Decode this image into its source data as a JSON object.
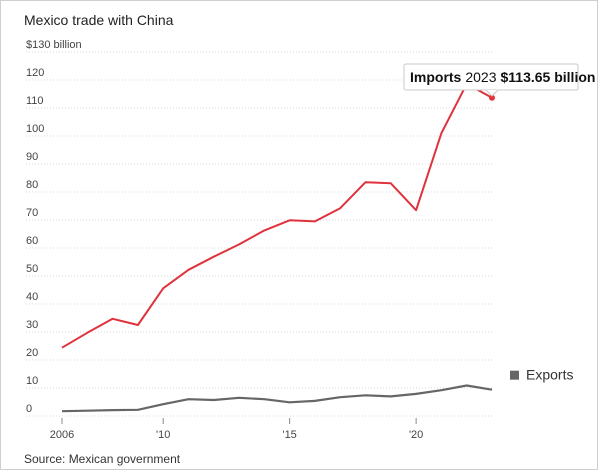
{
  "page": {
    "title": "Mexico trade with China",
    "source": "Source: Mexican government"
  },
  "chart_data": {
    "type": "line",
    "title": "Mexico trade with China",
    "xlabel": "",
    "ylabel": "$130 billion",
    "x": [
      2006,
      2007,
      2008,
      2009,
      2010,
      2011,
      2012,
      2013,
      2014,
      2015,
      2016,
      2017,
      2018,
      2019,
      2020,
      2021,
      2022,
      2023
    ],
    "xlim": [
      2006,
      2023
    ],
    "ylim": [
      0,
      130
    ],
    "x_ticks": [
      {
        "value": 2006,
        "label": "2006"
      },
      {
        "value": 2010,
        "label": "'10"
      },
      {
        "value": 2015,
        "label": "'15"
      },
      {
        "value": 2020,
        "label": "'20"
      }
    ],
    "y_ticks": [
      {
        "value": 130,
        "label": "$130 billion"
      },
      {
        "value": 120,
        "label": "120"
      },
      {
        "value": 110,
        "label": "110"
      },
      {
        "value": 100,
        "label": "100"
      },
      {
        "value": 90,
        "label": "90"
      },
      {
        "value": 80,
        "label": "80"
      },
      {
        "value": 70,
        "label": "70"
      },
      {
        "value": 60,
        "label": "60"
      },
      {
        "value": 50,
        "label": "50"
      },
      {
        "value": 40,
        "label": "40"
      },
      {
        "value": 30,
        "label": "30"
      },
      {
        "value": 20,
        "label": "20"
      },
      {
        "value": 10,
        "label": "10"
      },
      {
        "value": 0,
        "label": "0"
      }
    ],
    "grid": true,
    "series": [
      {
        "name": "Imports",
        "color": "#e0323c",
        "values": [
          24.4,
          29.7,
          34.7,
          32.5,
          45.6,
          52.2,
          56.9,
          61.3,
          66.3,
          69.9,
          69.5,
          74.2,
          83.5,
          83.1,
          73.5,
          101.0,
          118.6,
          113.65
        ]
      },
      {
        "name": "Exports",
        "color": "#666666",
        "values": [
          1.7,
          1.9,
          2.1,
          2.2,
          4.2,
          6.0,
          5.7,
          6.5,
          6.0,
          4.9,
          5.4,
          6.7,
          7.4,
          7.0,
          7.9,
          9.2,
          10.9,
          9.4
        ]
      }
    ],
    "legend_placement": "right",
    "annotation": {
      "series_label": "Imports",
      "year": "2023",
      "value": "$113.65 billion"
    }
  }
}
